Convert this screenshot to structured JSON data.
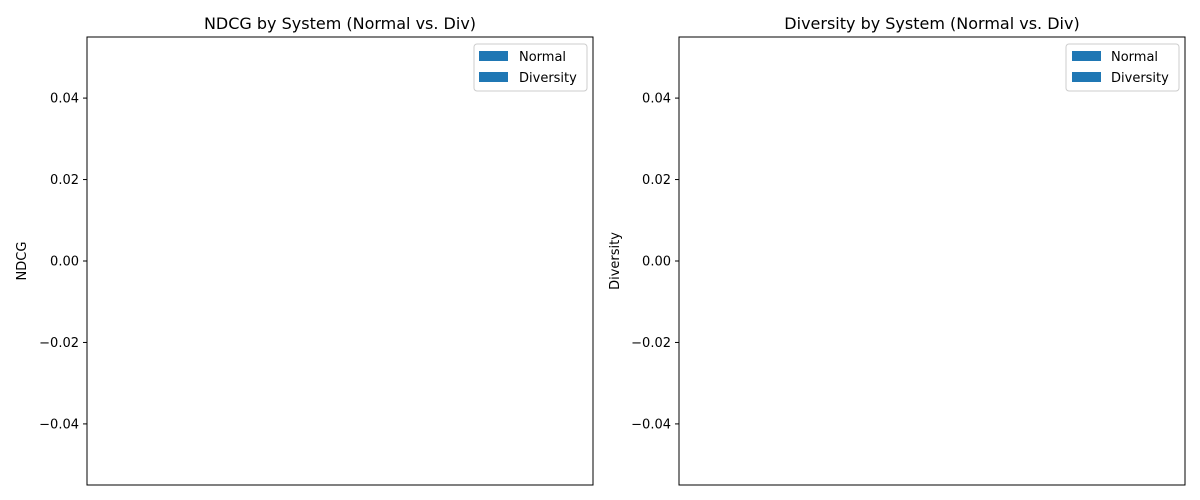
{
  "chart_data": [
    {
      "type": "bar",
      "title": "NDCG by System (Normal vs. Div)",
      "xlabel": "",
      "ylabel": "NDCG",
      "categories": [],
      "series": [
        {
          "name": "Normal",
          "values": [],
          "color": "#1f77b4"
        },
        {
          "name": "Diversity",
          "values": [],
          "color": "#1f77b4"
        }
      ],
      "ylim": [
        -0.055,
        0.055
      ],
      "yticks": [
        0.04,
        0.02,
        0.0,
        -0.02,
        -0.04
      ],
      "ytick_labels": [
        "0.04",
        "0.02",
        "0.00",
        "−0.02",
        "−0.04"
      ],
      "legend": "top-right",
      "grid": false
    },
    {
      "type": "bar",
      "title": "Diversity by System (Normal vs. Div)",
      "xlabel": "",
      "ylabel": "Diversity",
      "categories": [],
      "series": [
        {
          "name": "Normal",
          "values": [],
          "color": "#1f77b4"
        },
        {
          "name": "Diversity",
          "values": [],
          "color": "#1f77b4"
        }
      ],
      "ylim": [
        -0.055,
        0.055
      ],
      "yticks": [
        0.04,
        0.02,
        0.0,
        -0.02,
        -0.04
      ],
      "ytick_labels": [
        "0.04",
        "0.02",
        "0.00",
        "−0.02",
        "−0.04"
      ],
      "legend": "top-right",
      "grid": false
    }
  ]
}
